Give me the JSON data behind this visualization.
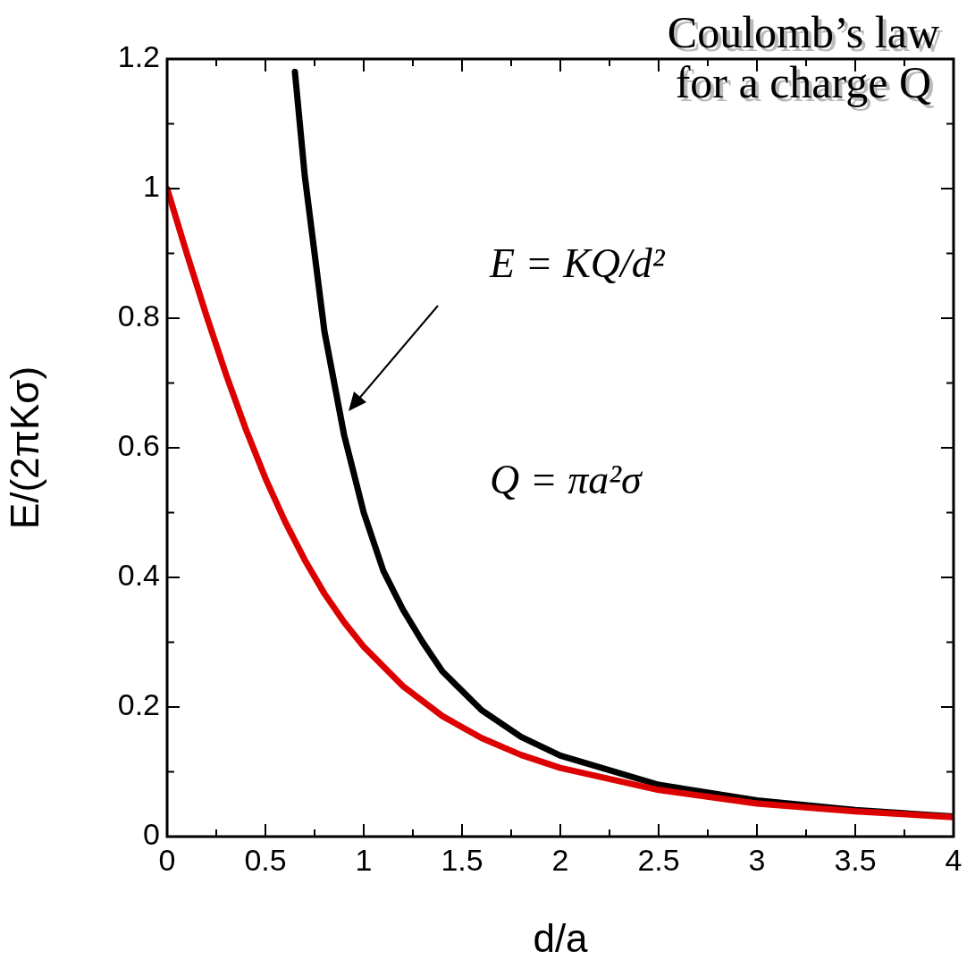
{
  "chart_data": {
    "type": "line",
    "title": "Coulomb’s law\nfor a charge Q",
    "xlabel": "d/a",
    "ylabel": "E/(2πKσ)",
    "annotations": [
      "E = KQ/d²",
      "Q = πa²σ"
    ],
    "xlim": [
      0,
      4
    ],
    "ylim": [
      0,
      1.2
    ],
    "xticks": [
      0,
      0.5,
      1,
      1.5,
      2,
      2.5,
      3,
      3.5,
      4
    ],
    "yticks": [
      0,
      0.2,
      0.4,
      0.6,
      0.8,
      1,
      1.2
    ],
    "marker": "none",
    "line_style": "solid",
    "series": [
      {
        "color": "#dd0000",
        "x": [
          0,
          0.1,
          0.2,
          0.3,
          0.4,
          0.5,
          0.6,
          0.7,
          0.8,
          0.9,
          1,
          1.2,
          1.4,
          1.6,
          1.8,
          2,
          2.5,
          3,
          3.5,
          4
        ],
        "values": [
          1,
          0.9,
          0.804,
          0.713,
          0.629,
          0.553,
          0.486,
          0.427,
          0.375,
          0.331,
          0.293,
          0.232,
          0.186,
          0.152,
          0.126,
          0.106,
          0.072,
          0.051,
          0.039,
          0.03
        ]
      },
      {
        "color": "#000000",
        "x": [
          0.65,
          0.7,
          0.8,
          0.9,
          1,
          1.1,
          1.2,
          1.3,
          1.4,
          1.6,
          1.8,
          2,
          2.5,
          3,
          3.5,
          4
        ],
        "values": [
          1.18,
          1.02,
          0.78,
          0.62,
          0.5,
          0.41,
          0.35,
          0.3,
          0.255,
          0.195,
          0.154,
          0.125,
          0.08,
          0.056,
          0.041,
          0.031
        ]
      }
    ]
  }
}
